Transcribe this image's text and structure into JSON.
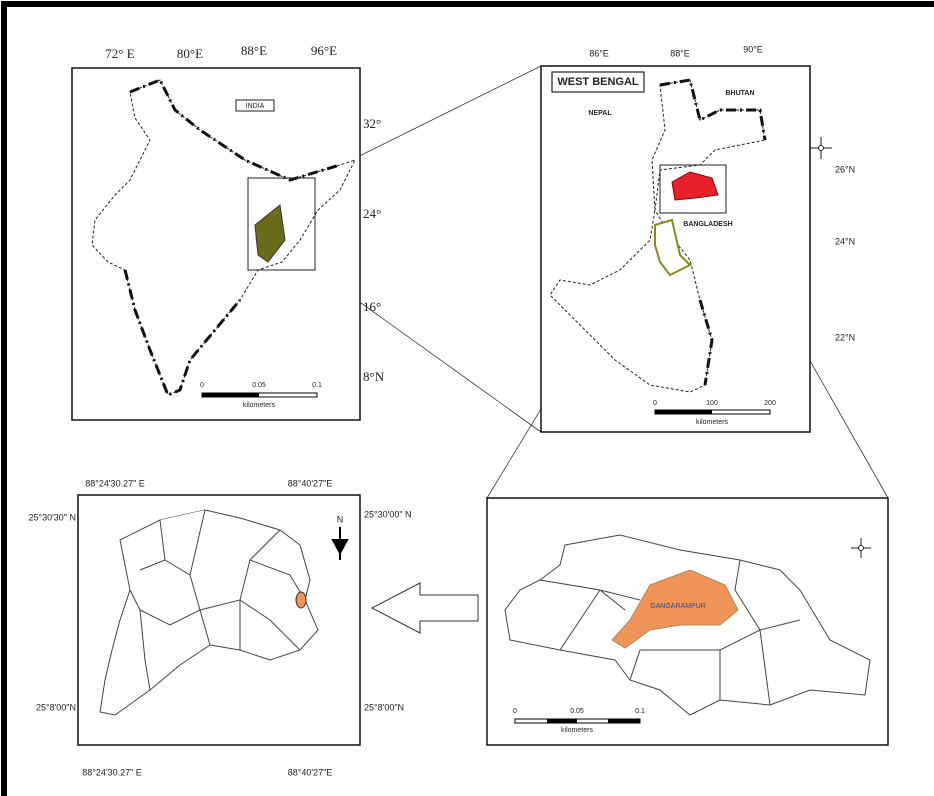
{
  "india_map": {
    "label": "INDIA",
    "longitudes": [
      "72° E",
      "80°E",
      "88°E",
      "96°E"
    ],
    "latitudes": [
      "32°",
      "24°",
      "16°",
      "8°N"
    ],
    "scale": [
      "0",
      "0.05",
      "0.1"
    ],
    "scale_unit": "kilometers"
  },
  "west_bengal_map": {
    "label": "WEST BENGAL",
    "places": [
      "NEPAL",
      "BHUTAN",
      "BANGLADESH"
    ],
    "longitudes": [
      "86°E",
      "88°E",
      "90°E"
    ],
    "latitudes": [
      "26°N",
      "24°N",
      "22°N"
    ],
    "scale": [
      "0",
      "100",
      "200"
    ],
    "scale_unit": "kilometers"
  },
  "district_map": {
    "label": "GANGARAMPUR",
    "scale": [
      "0",
      "0.05",
      "0.1"
    ],
    "scale_unit": "kilometers"
  },
  "block_map": {
    "north": "N",
    "top_left_lon": "88°24'30.27\" E",
    "top_right_lon": "88°40'27\"E",
    "left_top_lat": "25°30'30\" N",
    "right_top_lat": "25°30'00\" N",
    "left_bottom_lat": "25°8'00\"N",
    "right_bottom_lat": "25°8'00\"N",
    "bottom_left_lon": "88°24'30.27\" E",
    "bottom_right_lon": "88°40'27\"E"
  }
}
